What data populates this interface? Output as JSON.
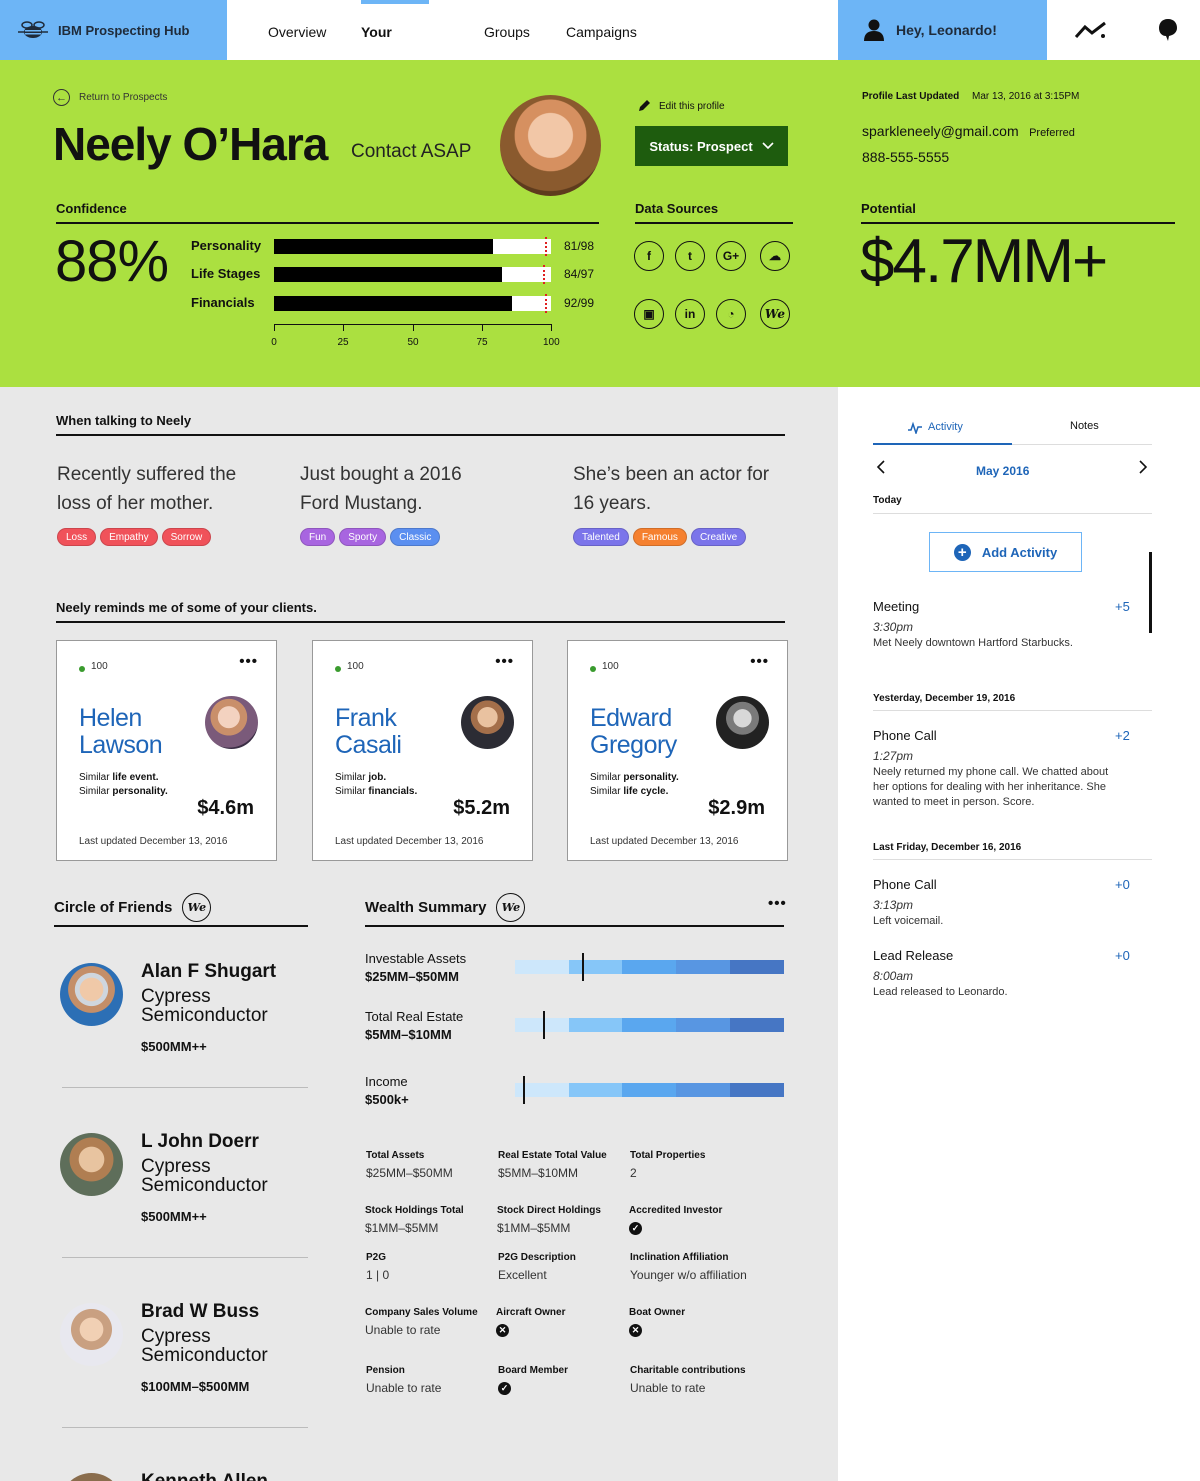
{
  "nav": {
    "brand": "IBM Prospecting Hub",
    "links": [
      "Overview",
      "Your Prospects",
      "Groups",
      "Campaigns"
    ],
    "greeting": "Hey, Leonardo!"
  },
  "profile": {
    "return_label": "Return to Prospects",
    "name": "Neely O’Hara",
    "contact_label": "Contact ASAP",
    "edit_label": "Edit this profile",
    "status_label": "Status: Prospect",
    "last_updated_label": "Profile Last Updated",
    "last_updated_value": "Mar 13, 2016 at 3:15PM",
    "email": "sparkleneely@gmail.com",
    "email_tag": "Preferred",
    "phone": "888-555-5555"
  },
  "confidence": {
    "title": "Confidence",
    "value": "88%",
    "rows": [
      {
        "label": "Personality",
        "score": 81,
        "max": 98,
        "text": "81/98"
      },
      {
        "label": "Life Stages",
        "score": 84,
        "max": 97,
        "text": "84/97"
      },
      {
        "label": "Financials",
        "score": 92,
        "max": 99,
        "text": "92/99"
      }
    ],
    "ticks": [
      "0",
      "25",
      "50",
      "75",
      "100"
    ]
  },
  "data_sources": {
    "title": "Data Sources",
    "icons": [
      {
        "name": "facebook-icon",
        "glyph": "f"
      },
      {
        "name": "twitter-icon",
        "glyph": "t"
      },
      {
        "name": "google-plus-icon",
        "glyph": "G+"
      },
      {
        "name": "salesforce-icon",
        "glyph": "☁"
      },
      {
        "name": "chip-icon",
        "glyph": "▣"
      },
      {
        "name": "linkedin-icon",
        "glyph": "in"
      },
      {
        "name": "rss-icon",
        "glyph": "◔"
      },
      {
        "name": "we-icon",
        "glyph": "We"
      }
    ]
  },
  "potential": {
    "title": "Potential",
    "value": "$4.7MM+"
  },
  "talking": {
    "title": "When talking to Neely",
    "items": [
      {
        "text": "Recently suffered the loss of her mother.",
        "tags": [
          {
            "label": "Loss",
            "color": "#f0525a"
          },
          {
            "label": "Empathy",
            "color": "#f0525a"
          },
          {
            "label": "Sorrow",
            "color": "#f0525a"
          }
        ]
      },
      {
        "text": "Just bought a 2016 Ford Mustang.",
        "tags": [
          {
            "label": "Fun",
            "color": "#a865e0"
          },
          {
            "label": "Sporty",
            "color": "#a865e0"
          },
          {
            "label": "Classic",
            "color": "#5b8ff0"
          }
        ]
      },
      {
        "text": "She’s been an actor for 16 years.",
        "tags": [
          {
            "label": "Talented",
            "color": "#7b74ea"
          },
          {
            "label": "Famous",
            "color": "#f5802f"
          },
          {
            "label": "Creative",
            "color": "#7b74ea"
          }
        ]
      }
    ]
  },
  "clients": {
    "title": "Neely reminds me of some of your clients.",
    "cards": [
      {
        "score": "100",
        "first": "Helen",
        "last": "Lawson",
        "sim1_a": "Similar ",
        "sim1_b": "life event.",
        "sim2_a": "Similar ",
        "sim2_b": "personality.",
        "amount": "$4.6m",
        "updated": "Last updated December 13, 2016"
      },
      {
        "score": "100",
        "first": "Frank",
        "last": "Casali",
        "sim1_a": "Similar ",
        "sim1_b": "job.",
        "sim2_a": "Similar ",
        "sim2_b": "financials.",
        "amount": "$5.2m",
        "updated": "Last updated December 13, 2016"
      },
      {
        "score": "100",
        "first": "Edward",
        "last": "Gregory",
        "sim1_a": "Similar ",
        "sim1_b": "personality.",
        "sim2_a": "Similar ",
        "sim2_b": "life cycle.",
        "amount": "$2.9m",
        "updated": "Last updated December 13, 2016"
      }
    ]
  },
  "friends": {
    "title": "Circle of Friends",
    "items": [
      {
        "name": "Alan F Shugart",
        "company_1": "Cypress",
        "company_2": "Semiconductor",
        "value": "$500MM++"
      },
      {
        "name": "L John Doerr",
        "company_1": "Cypress",
        "company_2": "Semiconductor",
        "value": "$500MM++"
      },
      {
        "name": "Brad W Buss",
        "company_1": "Cypress",
        "company_2": "Semiconductor",
        "value": "$100MM–$500MM"
      },
      {
        "name": "Kenneth Allen"
      }
    ]
  },
  "wealth": {
    "title": "Wealth Summary",
    "rows": [
      {
        "label": "Investable Assets",
        "value": "$25MM–$50MM",
        "marker": 0.25
      },
      {
        "label": "Total Real Estate",
        "value": "$5MM–$10MM",
        "marker": 0.105
      },
      {
        "label": "Income",
        "value": "$500k+",
        "marker": 0.03
      }
    ],
    "facts": [
      {
        "key": "Total Assets",
        "value": "$25MM–$50MM"
      },
      {
        "key": "Real Estate Total Value",
        "value": "$5MM–$10MM"
      },
      {
        "key": "Total Properties",
        "value": "2"
      },
      {
        "key": "Stock Holdings Total",
        "value": "$1MM–$5MM"
      },
      {
        "key": "Stock Direct Holdings",
        "value": "$1MM–$5MM"
      },
      {
        "key": "Accredited Investor",
        "value": "",
        "icon": "check"
      },
      {
        "key": "P2G",
        "value": "1 | 0"
      },
      {
        "key": "P2G Description",
        "value": "Excellent"
      },
      {
        "key": "Inclination Affiliation",
        "value": "Younger w/o affiliation"
      },
      {
        "key": "Company Sales Volume",
        "value": "Unable to rate"
      },
      {
        "key": "Aircraft Owner",
        "value": "",
        "icon": "x"
      },
      {
        "key": "Boat Owner",
        "value": "",
        "icon": "x"
      },
      {
        "key": "Pension",
        "value": "Unable to rate"
      },
      {
        "key": "Board Member",
        "value": "",
        "icon": "check"
      },
      {
        "key": "Charitable contributions",
        "value": "Unable to rate"
      }
    ]
  },
  "activity": {
    "tabs": [
      "Activity",
      "Notes"
    ],
    "month": "May 2016",
    "today": "Today",
    "add_label": "Add Activity",
    "items": [
      {
        "title": "Meeting",
        "plus": "+5",
        "time": "3:30pm",
        "desc": "Met Neely downtown Hartford Starbucks."
      },
      {
        "date": "Yesterday, December 19, 2016",
        "title": "Phone Call",
        "plus": "+2",
        "time": "1:27pm",
        "desc": "Neely returned my phone call. We chatted about her options for dealing with her inheritance. She wanted to meet in person. Score."
      },
      {
        "date": "Last Friday, December 16, 2016",
        "title": "Phone Call",
        "plus": "+0",
        "time": "3:13pm",
        "desc": "Left voicemail."
      },
      {
        "title": "Lead Release",
        "plus": "+0",
        "time": "8:00am",
        "desc": "Lead released to Leonardo."
      }
    ]
  }
}
